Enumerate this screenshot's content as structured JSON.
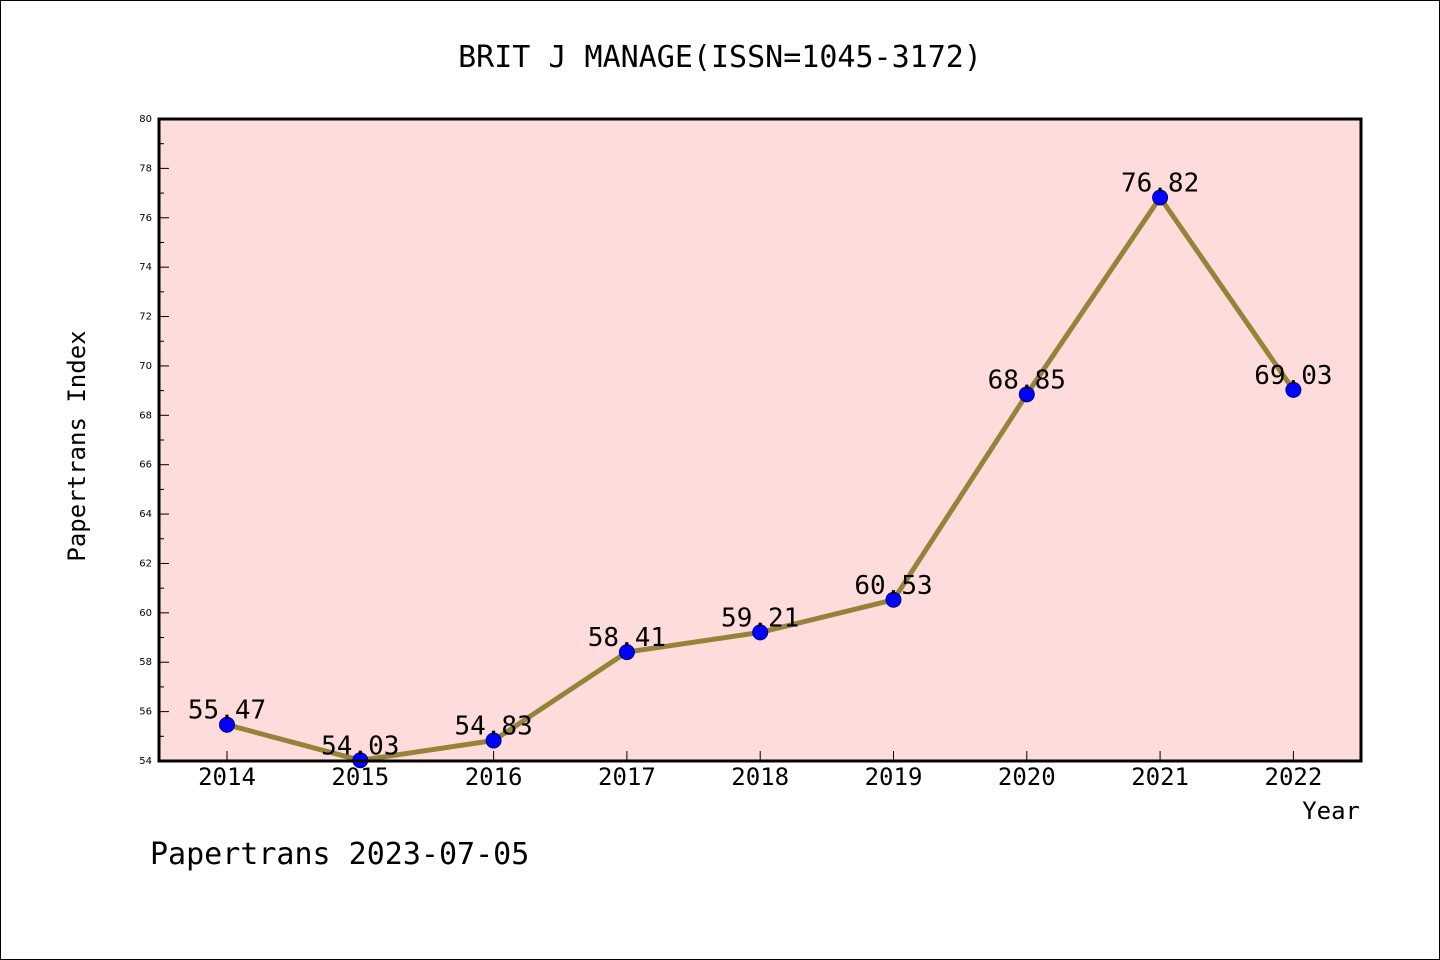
{
  "chart_data": {
    "type": "line",
    "title": "BRIT J MANAGE(ISSN=1045-3172)",
    "xlabel": "Year",
    "ylabel": "Papertrans Index",
    "footer": "Papertrans 2023-07-05",
    "categories": [
      "2014",
      "2015",
      "2016",
      "2017",
      "2018",
      "2019",
      "2020",
      "2021",
      "2022"
    ],
    "values": [
      55.47,
      54.03,
      54.83,
      58.41,
      59.21,
      60.53,
      68.85,
      76.82,
      69.03
    ],
    "data_labels": [
      "55.47",
      "54.03",
      "54.83",
      "58.41",
      "59.21",
      "60.53",
      "68.85",
      "76.82",
      "69.03"
    ],
    "ylim": [
      54,
      80
    ],
    "yticks": [
      "54",
      "56",
      "58",
      "60",
      "62",
      "64",
      "66",
      "68",
      "70",
      "72",
      "74",
      "76",
      "78",
      "80"
    ],
    "grid": false,
    "colors": {
      "plot_background": "#ffdcdc",
      "line": "#94843a",
      "marker": "#0000ff",
      "marker_edge": "#000080"
    }
  }
}
